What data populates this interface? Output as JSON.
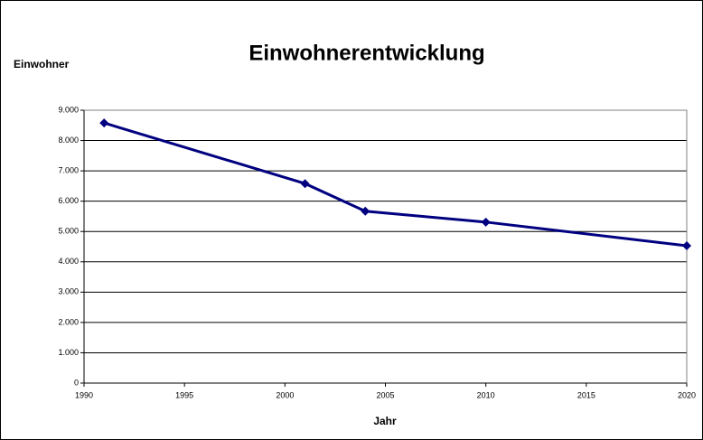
{
  "chart_data": {
    "type": "line",
    "title": "Einwohnerentwicklung",
    "y_label": "Einwohner",
    "x_label": "Jahr",
    "x": [
      1991,
      2001,
      2004,
      2010,
      2020
    ],
    "series": [
      {
        "name": "Einwohner",
        "color": "#000080",
        "values": [
          8580,
          6580,
          5670,
          5310,
          4530
        ]
      }
    ],
    "xlim": [
      1990,
      2020
    ],
    "xticks": [
      1990,
      1995,
      2000,
      2005,
      2010,
      2015,
      2020
    ],
    "ylim": [
      0,
      9000
    ],
    "yticks": [
      0,
      {
        "value": 1000,
        "label": "1.000"
      },
      {
        "value": 2000,
        "label": "2.000"
      },
      {
        "value": 3000,
        "label": "3.000"
      },
      {
        "value": 4000,
        "label": "4.000"
      },
      {
        "value": 5000,
        "label": "5.000"
      },
      {
        "value": 6000,
        "label": "6.000"
      },
      {
        "value": 7000,
        "label": "7.000"
      },
      {
        "value": 8000,
        "label": "8.000"
      },
      {
        "value": 9000,
        "label": "9.000"
      }
    ],
    "grid": true
  }
}
